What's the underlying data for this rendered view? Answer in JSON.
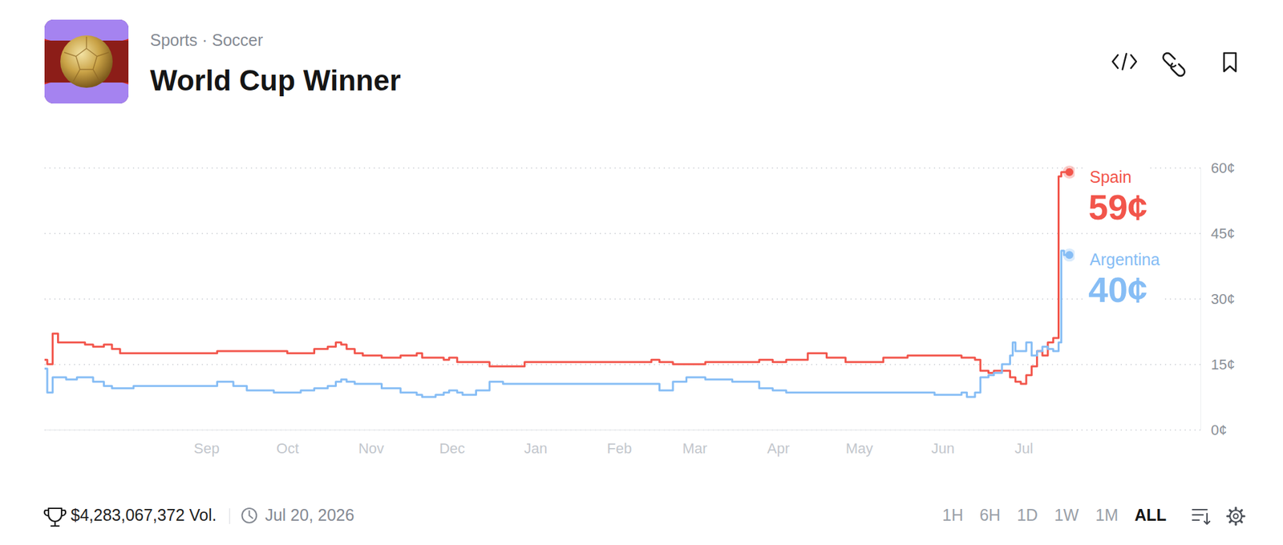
{
  "chart_data": {
    "type": "line",
    "title": "World Cup Winner",
    "subtitle": "Sports · Soccer",
    "line_style": "step",
    "x": [
      0,
      1,
      3,
      5,
      8,
      12,
      15,
      18,
      22,
      25,
      28,
      33,
      40,
      50,
      60,
      64,
      70,
      75,
      85,
      90,
      95,
      100,
      105,
      108,
      110,
      112,
      115,
      118,
      125,
      132,
      138,
      140,
      145,
      148,
      150,
      153,
      155,
      160,
      165,
      170,
      178,
      190,
      200,
      210,
      220,
      225,
      228,
      233,
      238,
      245,
      250,
      255,
      260,
      265,
      270,
      275,
      283,
      290,
      297,
      305,
      311,
      320,
      330,
      340,
      342,
      345,
      347,
      350,
      352,
      355,
      358,
      359,
      360,
      362,
      364,
      366,
      368,
      370,
      372,
      374,
      376,
      377,
      378,
      380
    ],
    "series": [
      {
        "name": "Spain",
        "color": "#f2554b",
        "values": [
          16,
          15,
          22,
          20,
          20,
          20,
          19.5,
          19,
          19.5,
          18.5,
          17.5,
          17.5,
          17.5,
          17.5,
          17.5,
          18,
          18,
          18,
          18,
          17.5,
          17.5,
          18.5,
          19,
          20,
          19.5,
          18.5,
          17.5,
          17,
          16.5,
          17,
          17.5,
          16.5,
          16.5,
          16,
          16.5,
          15.5,
          15.5,
          15.5,
          14.5,
          14.5,
          15.5,
          15.5,
          15.5,
          15.5,
          15.5,
          16,
          15.5,
          15,
          15,
          15.5,
          15.5,
          15.5,
          15.5,
          16,
          15.5,
          16,
          17.5,
          16.5,
          15.5,
          15.5,
          16.5,
          17,
          17,
          16.5,
          16.5,
          16,
          13.5,
          13,
          13.5,
          13.5,
          12,
          12,
          11,
          10.5,
          12.5,
          14.5,
          18,
          17,
          20,
          21,
          58,
          59,
          59,
          59
        ],
        "value_labels": [
          null,
          null,
          null,
          null,
          null,
          null,
          null,
          null,
          null,
          null,
          null,
          null,
          null,
          null,
          null,
          null,
          null,
          null,
          null,
          null,
          null,
          null,
          null,
          null,
          null,
          null,
          null,
          null,
          null,
          null,
          null,
          null,
          null,
          null,
          null,
          null,
          null,
          null,
          null,
          null,
          null,
          null,
          null,
          null,
          null,
          null,
          null,
          null,
          null,
          null,
          null,
          null,
          null,
          null,
          null,
          null,
          null,
          null,
          null,
          null,
          null,
          null,
          null,
          null,
          null,
          null,
          null,
          null,
          null,
          null,
          null,
          null,
          null,
          null,
          null,
          null,
          null,
          null,
          null,
          null,
          null,
          null,
          null,
          "59¢"
        ]
      },
      {
        "name": "Argentina",
        "color": "#86bdf5",
        "values": [
          14,
          8.5,
          12,
          12,
          11.5,
          12,
          12,
          11,
          10,
          9.5,
          9.5,
          10,
          10,
          10,
          10,
          11,
          10,
          9,
          8.5,
          8.5,
          9,
          9.5,
          10,
          11,
          11.5,
          11,
          10.5,
          10.5,
          9.5,
          8.5,
          8,
          7.5,
          8,
          8.5,
          9,
          8.5,
          8,
          9,
          11,
          10.5,
          10.5,
          10.5,
          10.5,
          10.5,
          10.5,
          10.5,
          9,
          11,
          12,
          11.5,
          11.5,
          11,
          11,
          9.5,
          9,
          8.5,
          8.5,
          8.5,
          8.5,
          8.5,
          8.5,
          8.5,
          8,
          8.5,
          7.5,
          8.5,
          12,
          12.5,
          13,
          15,
          17,
          20,
          18,
          18,
          20,
          17,
          18,
          19,
          18.5,
          18,
          20,
          41,
          40,
          40
        ],
        "value_labels": [
          null,
          null,
          null,
          null,
          null,
          null,
          null,
          null,
          null,
          null,
          null,
          null,
          null,
          null,
          null,
          null,
          null,
          null,
          null,
          null,
          null,
          null,
          null,
          null,
          null,
          null,
          null,
          null,
          null,
          null,
          null,
          null,
          null,
          null,
          null,
          null,
          null,
          null,
          null,
          null,
          null,
          null,
          null,
          null,
          null,
          null,
          null,
          null,
          null,
          null,
          null,
          null,
          null,
          null,
          null,
          null,
          null,
          null,
          null,
          null,
          null,
          null,
          null,
          null,
          null,
          null,
          null,
          null,
          null,
          null,
          null,
          null,
          null,
          null,
          null,
          null,
          null,
          null,
          null,
          null,
          null,
          null,
          null,
          "40¢"
        ]
      }
    ],
    "xlim": [
      0,
      380
    ],
    "xticks": [
      {
        "value": 60,
        "label": "Sep"
      },
      {
        "value": 90,
        "label": "Oct"
      },
      {
        "value": 121,
        "label": "Nov"
      },
      {
        "value": 151,
        "label": "Dec"
      },
      {
        "value": 182,
        "label": "Jan"
      },
      {
        "value": 213,
        "label": "Feb"
      },
      {
        "value": 241,
        "label": "Mar"
      },
      {
        "value": 272,
        "label": "Apr"
      },
      {
        "value": 302,
        "label": "May"
      },
      {
        "value": 333,
        "label": "Jun"
      },
      {
        "value": 363,
        "label": "Jul"
      }
    ],
    "ylim": [
      0,
      60
    ],
    "yticks": [
      {
        "value": 0,
        "label": "0¢"
      },
      {
        "value": 15,
        "label": "15¢"
      },
      {
        "value": 30,
        "label": "30¢"
      },
      {
        "value": 45,
        "label": "45¢"
      },
      {
        "value": 60,
        "label": "60¢"
      }
    ],
    "grid": true,
    "annotations": [
      "$4,283,067,372 Vol.",
      "Jul 20, 2026"
    ]
  },
  "controls": {
    "ranges": [
      "1H",
      "6H",
      "1D",
      "1W",
      "1M",
      "ALL"
    ],
    "selected": "ALL"
  }
}
